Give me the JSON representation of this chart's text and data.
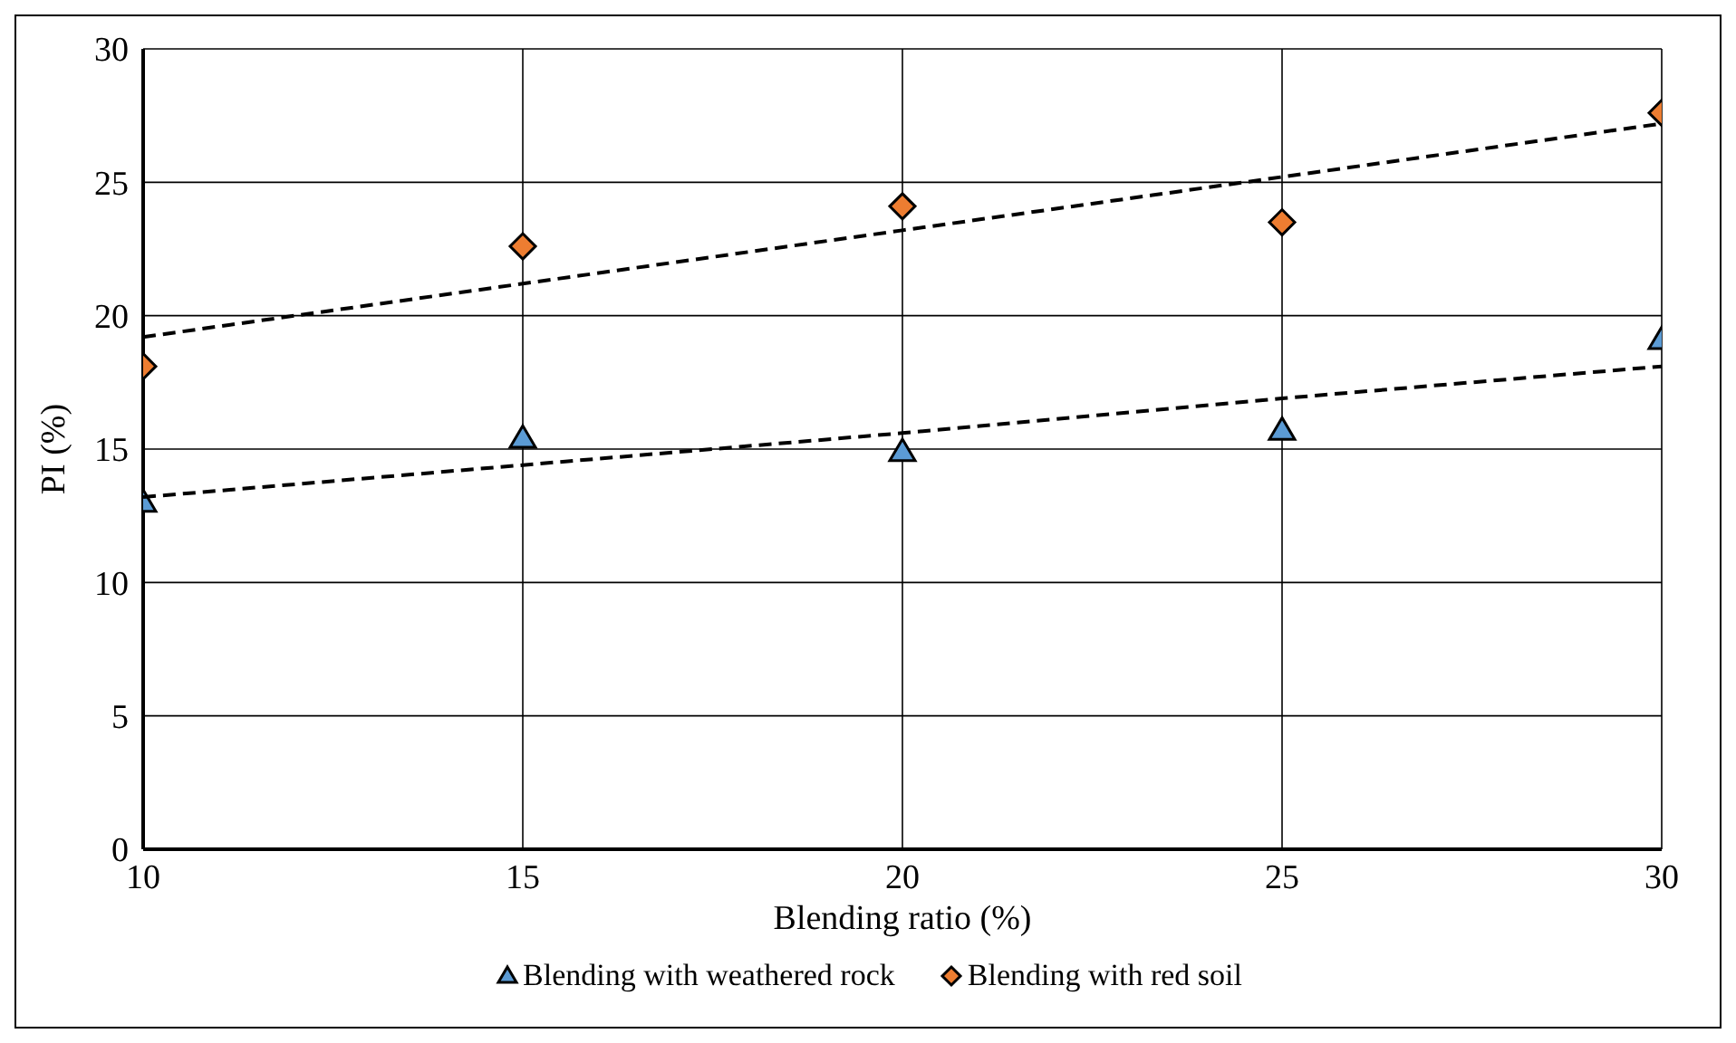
{
  "chart_data": {
    "type": "scatter",
    "xlabel": "Blending ratio (%)",
    "ylabel": "PI (%)",
    "x": [
      10,
      15,
      20,
      25,
      30
    ],
    "series": [
      {
        "name": "Blending with weathered rock",
        "color": "#5b9bd5",
        "values": [
          13.0,
          15.4,
          14.9,
          15.7,
          19.1
        ],
        "marker": "triangle"
      },
      {
        "name": "Blending with red soil",
        "color": "#ed7d31",
        "values": [
          18.1,
          22.6,
          24.1,
          23.5,
          27.6
        ],
        "marker": "diamond"
      },
      {
        "type": "line",
        "color": "#000000",
        "values": [
          13.2,
          14.4,
          15.6,
          16.9,
          18.1
        ],
        "line_style": "dashed",
        "marker": "none"
      },
      {
        "type": "line",
        "color": "#000000",
        "values": [
          19.2,
          21.2,
          23.2,
          25.2,
          27.2
        ],
        "line_style": "dashed",
        "marker": "none"
      }
    ],
    "xlim": [
      10,
      30
    ],
    "xticks": [
      10,
      15,
      20,
      25,
      30
    ],
    "ylim": [
      0,
      30
    ],
    "yticks": [
      0,
      5,
      10,
      15,
      20,
      25,
      30
    ],
    "grid": true,
    "legend": "bottom"
  }
}
